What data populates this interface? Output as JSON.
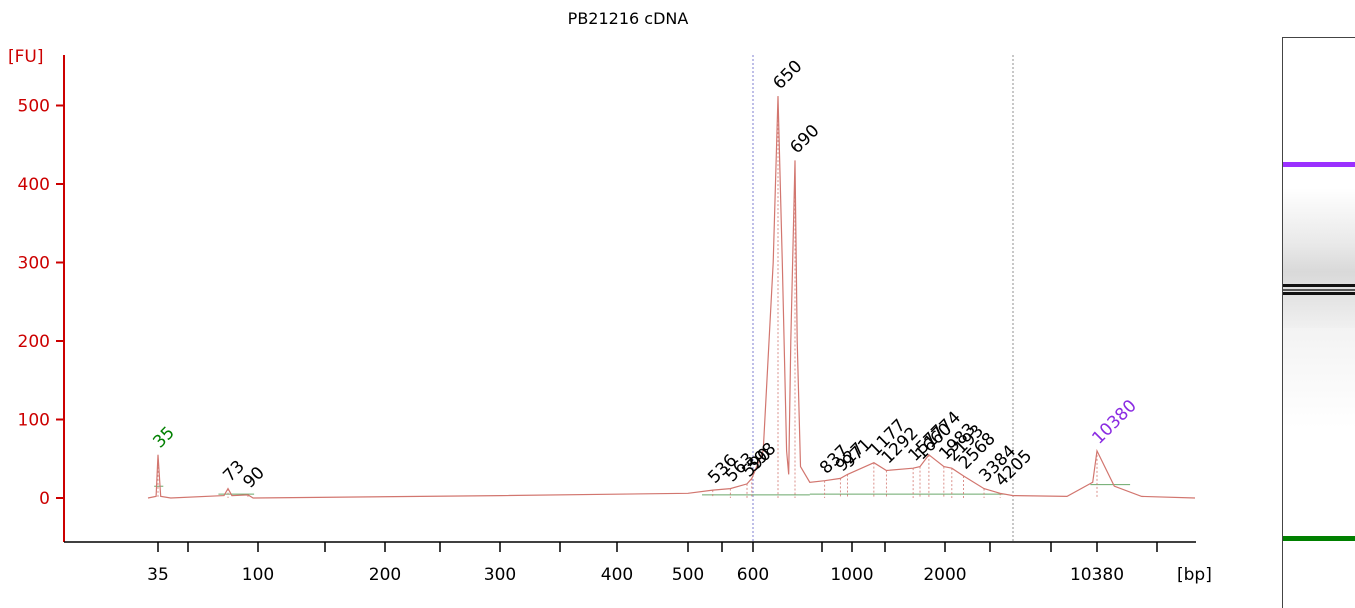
{
  "chart_data": {
    "type": "line",
    "title": "PB21216 cDNA",
    "ylabel": "[FU]",
    "xlabel": "[bp]",
    "ylim": [
      -50,
      550
    ],
    "yticks": [
      0,
      100,
      200,
      300,
      400,
      500
    ],
    "xaxis_scale": "electropherogram (non-linear, fragment size)",
    "xticks": [
      "35",
      "100",
      "200",
      "300",
      "400",
      "500",
      "600",
      "1000",
      "2000",
      "10380"
    ],
    "grid": false,
    "series": [
      {
        "color": "#d2766f",
        "points_bp": [
          [
            30,
            0
          ],
          [
            34,
            2
          ],
          [
            35,
            55
          ],
          [
            36,
            2
          ],
          [
            40,
            0
          ],
          [
            70,
            3
          ],
          [
            73,
            12
          ],
          [
            76,
            3
          ],
          [
            90,
            4
          ],
          [
            95,
            0
          ],
          [
            300,
            3
          ],
          [
            500,
            6
          ],
          [
            536,
            10
          ],
          [
            563,
            12
          ],
          [
            590,
            18
          ],
          [
            598,
            25
          ],
          [
            620,
            60
          ],
          [
            640,
            300
          ],
          [
            650,
            512
          ],
          [
            660,
            300
          ],
          [
            670,
            60
          ],
          [
            675,
            30
          ],
          [
            680,
            200
          ],
          [
            690,
            430
          ],
          [
            700,
            200
          ],
          [
            715,
            40
          ],
          [
            760,
            20
          ],
          [
            837,
            22
          ],
          [
            927,
            25
          ],
          [
            971,
            30
          ],
          [
            1177,
            45
          ],
          [
            1292,
            35
          ],
          [
            1577,
            38
          ],
          [
            1660,
            40
          ],
          [
            1774,
            55
          ],
          [
            1983,
            40
          ],
          [
            2193,
            38
          ],
          [
            2568,
            28
          ],
          [
            3384,
            12
          ],
          [
            4205,
            6
          ],
          [
            5000,
            3
          ],
          [
            8000,
            2
          ],
          [
            10000,
            20
          ],
          [
            10380,
            60
          ],
          [
            10800,
            15
          ],
          [
            11500,
            2
          ],
          [
            13000,
            0
          ]
        ]
      }
    ],
    "peak_labels": [
      {
        "label": "35",
        "bp": 35,
        "y": 55,
        "color": "#008000"
      },
      {
        "label": "73",
        "bp": 73,
        "y": 12,
        "color": "#000000"
      },
      {
        "label": "90",
        "bp": 90,
        "y": 4,
        "color": "#000000"
      },
      {
        "label": "536",
        "bp": 536,
        "y": 10,
        "color": "#000000"
      },
      {
        "label": "563",
        "bp": 563,
        "y": 12,
        "color": "#000000"
      },
      {
        "label": "590",
        "bp": 590,
        "y": 18,
        "color": "#000000"
      },
      {
        "label": "598",
        "bp": 598,
        "y": 25,
        "color": "#000000"
      },
      {
        "label": "650",
        "bp": 650,
        "y": 512,
        "color": "#000000"
      },
      {
        "label": "690",
        "bp": 690,
        "y": 430,
        "color": "#000000"
      },
      {
        "label": "837",
        "bp": 837,
        "y": 22,
        "color": "#000000"
      },
      {
        "label": "927",
        "bp": 927,
        "y": 25,
        "color": "#000000"
      },
      {
        "label": "971",
        "bp": 971,
        "y": 30,
        "color": "#000000"
      },
      {
        "label": "1177",
        "bp": 1177,
        "y": 45,
        "color": "#000000"
      },
      {
        "label": "1292",
        "bp": 1292,
        "y": 35,
        "color": "#000000"
      },
      {
        "label": "1577",
        "bp": 1577,
        "y": 38,
        "color": "#000000"
      },
      {
        "label": "1660",
        "bp": 1660,
        "y": 40,
        "color": "#000000"
      },
      {
        "label": "1774",
        "bp": 1774,
        "y": 55,
        "color": "#000000"
      },
      {
        "label": "1983",
        "bp": 1983,
        "y": 40,
        "color": "#000000"
      },
      {
        "label": "2193",
        "bp": 2193,
        "y": 38,
        "color": "#000000"
      },
      {
        "label": "2568",
        "bp": 2568,
        "y": 28,
        "color": "#000000"
      },
      {
        "label": "3384",
        "bp": 3384,
        "y": 12,
        "color": "#000000"
      },
      {
        "label": "4205",
        "bp": 4205,
        "y": 6,
        "color": "#000000"
      },
      {
        "label": "10380",
        "bp": 10380,
        "y": 60,
        "color": "#8a2be2"
      }
    ],
    "region_markers_bp": [
      600,
      5000
    ],
    "gel_bands": [
      {
        "name": "upper-marker",
        "color": "#9b30ff"
      },
      {
        "name": "main-band",
        "color": "#111111"
      },
      {
        "name": "lower-marker",
        "color": "#008000"
      }
    ]
  }
}
